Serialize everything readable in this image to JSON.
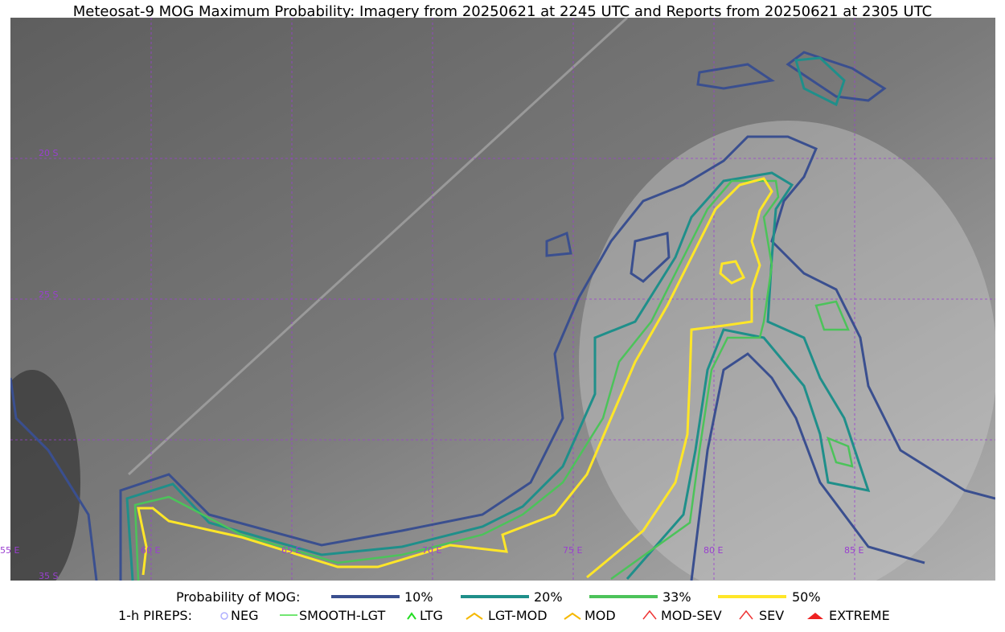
{
  "title": "Meteosat-9 MOG Maximum Probability: Imagery from 20250621 at 2245 UTC and Reports from 20250621 at 2305 UTC",
  "grid_labels": {
    "latitude": [
      "20 S",
      "25 S",
      "35 S"
    ],
    "longitude": [
      "55 E",
      "60 E",
      "65 E",
      "70 E",
      "75 E",
      "80 E",
      "85 E"
    ]
  },
  "legend": {
    "probability": {
      "label": "Probability of MOG:",
      "levels": [
        "10%",
        "20%",
        "33%",
        "50%"
      ]
    },
    "pireps": {
      "label": "1-h PIREPS:",
      "items": [
        "NEG",
        "SMOOTH-LGT",
        "LTG",
        "LGT-MOD",
        "MOD",
        "MOD-SEV",
        "SEV",
        "EXTREME"
      ]
    }
  }
}
